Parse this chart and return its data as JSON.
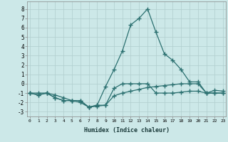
{
  "xlabel": "Humidex (Indice chaleur)",
  "x": [
    0,
    1,
    2,
    3,
    4,
    5,
    6,
    7,
    8,
    9,
    10,
    11,
    12,
    13,
    14,
    15,
    16,
    17,
    18,
    19,
    20,
    21,
    22,
    23
  ],
  "line_main": [
    -1.0,
    -1.2,
    -1.0,
    -1.5,
    -1.8,
    -1.8,
    -1.8,
    -2.5,
    -2.3,
    -0.3,
    1.5,
    3.5,
    6.3,
    7.0,
    8.0,
    5.5,
    3.2,
    2.5,
    1.5,
    0.2,
    0.2,
    -1.0,
    -0.7,
    -0.8
  ],
  "line_mid": [
    -1.0,
    -1.2,
    -1.0,
    -1.5,
    -1.8,
    -1.8,
    -1.8,
    -2.5,
    -2.3,
    -2.3,
    -0.5,
    0.0,
    0.0,
    0.0,
    0.0,
    -1.0,
    -1.0,
    -1.0,
    -0.9,
    -0.8,
    -0.8,
    -1.0,
    -1.0,
    -1.0
  ],
  "line_low": [
    -1.0,
    -1.0,
    -1.0,
    -1.2,
    -1.5,
    -1.8,
    -2.0,
    -2.5,
    -2.4,
    -2.3,
    -1.3,
    -1.0,
    -0.8,
    -0.6,
    -0.4,
    -0.3,
    -0.2,
    -0.1,
    0.0,
    0.0,
    0.0,
    -1.0,
    -1.0,
    -1.0
  ],
  "line_color": "#2b7070",
  "bg_color": "#cce8e8",
  "grid_color": "#b0cece",
  "ylim": [
    -3.5,
    8.8
  ],
  "xlim": [
    -0.3,
    23.3
  ],
  "yticks": [
    -3,
    -2,
    -1,
    0,
    1,
    2,
    3,
    4,
    5,
    6,
    7,
    8
  ],
  "xticks": [
    0,
    1,
    2,
    3,
    4,
    5,
    6,
    7,
    8,
    9,
    10,
    11,
    12,
    13,
    14,
    15,
    16,
    17,
    18,
    19,
    20,
    21,
    22,
    23
  ]
}
